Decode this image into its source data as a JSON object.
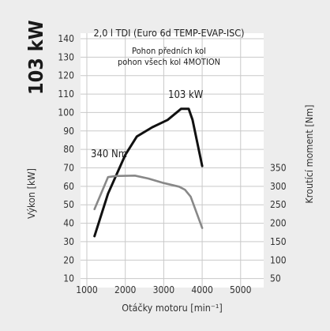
{
  "chart_data": {
    "type": "line",
    "power_badge": "103 kW",
    "title": "2,0 l TDI (Euro 6d TEMP-EVAP-ISC)",
    "legend": [
      "Pohon předních kol",
      "pohon všech kol 4MOTION"
    ],
    "xlabel": "Otáčky motoru [min⁻¹]",
    "ylabel_left": "Výkon [kW]",
    "ylabel_right": "Kroutící moment [Nm]",
    "xlim": [
      1000,
      5600
    ],
    "ylim_left": [
      0,
      140
    ],
    "ylim_right": [
      0,
      350
    ],
    "x_ticks": [
      "1000",
      "2000",
      "3000",
      "4000",
      "5000"
    ],
    "y_ticks_left": [
      "10",
      "20",
      "30",
      "40",
      "50",
      "60",
      "70",
      "80",
      "90",
      "100",
      "110",
      "120",
      "130",
      "140"
    ],
    "y_ticks_right": [
      "50",
      "100",
      "150",
      "200",
      "250",
      "300",
      "350"
    ],
    "grid": true,
    "series": [
      {
        "name": "103 kW",
        "axis": "left",
        "color": "#111111",
        "x": [
          1200,
          1550,
          2000,
          2300,
          2700,
          3100,
          3450,
          3650,
          3750,
          4000
        ],
        "y": [
          33,
          56,
          77,
          87,
          92,
          96,
          102,
          102,
          96,
          71
        ]
      },
      {
        "name": "340 Nm",
        "axis": "right",
        "color": "#888888",
        "x": [
          1200,
          1550,
          1750,
          2250,
          2600,
          3000,
          3400,
          3550,
          3700,
          4000
        ],
        "y": [
          238,
          325,
          328,
          329,
          321,
          309,
          299,
          291,
          272,
          187
        ]
      }
    ]
  }
}
